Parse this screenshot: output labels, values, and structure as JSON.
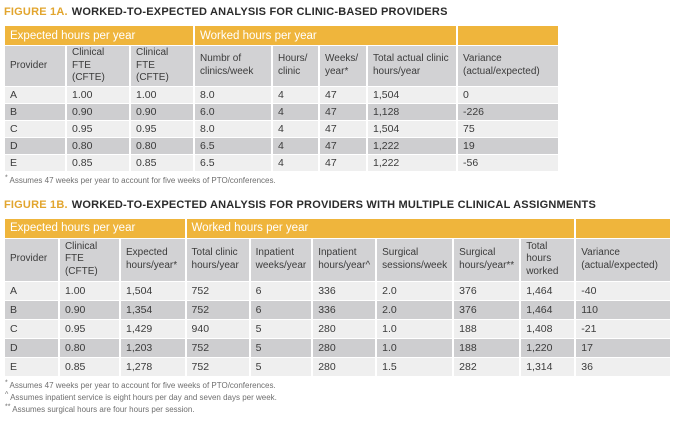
{
  "colors": {
    "gold": "#EFB53C",
    "figure_label_gold": "#E2A52E",
    "band_text": "#FFFFFF",
    "header_gray": "#D2D2D4",
    "row_light": "#EFEFEF",
    "row_dark": "#CECED0",
    "text_dark": "#3B3B3B",
    "footnote_gray": "#6F6F6F"
  },
  "figures": [
    {
      "label": "FIGURE 1A.",
      "title": "WORKED-TO-EXPECTED ANALYSIS FOR CLINIC-BASED PROVIDERS",
      "table": {
        "bands": [
          {
            "label": "Expected hours per year",
            "span": 3
          },
          {
            "label": "Worked hours per year",
            "span": 4
          },
          {
            "label": "",
            "span": 1
          }
        ],
        "columns": [
          "Provider",
          "Clinical FTE (CFTE)",
          "Clinical FTE (CFTE)",
          "Numbr of clinics/week",
          "Hours/ clinic",
          "Weeks/ year*",
          "Total actual clinic hours/year",
          "Variance (actual/expected)"
        ],
        "rows": [
          [
            "A",
            "1.00",
            "1.00",
            "8.0",
            "4",
            "47",
            "1,504",
            "0"
          ],
          [
            "B",
            "0.90",
            "0.90",
            "6.0",
            "4",
            "47",
            "1,128",
            "-226"
          ],
          [
            "C",
            "0.95",
            "0.95",
            "8.0",
            "4",
            "47",
            "1,504",
            "75"
          ],
          [
            "D",
            "0.80",
            "0.80",
            "6.5",
            "4",
            "47",
            "1,222",
            "19"
          ],
          [
            "E",
            "0.85",
            "0.85",
            "6.5",
            "4",
            "47",
            "1,222",
            "-56"
          ]
        ]
      },
      "footnotes": [
        {
          "marker": "*",
          "text": "Assumes 47 weeks per year to account for five weeks of PTO/conferences."
        }
      ]
    },
    {
      "label": "FIGURE 1B.",
      "title": "WORKED-TO-EXPECTED ANALYSIS FOR PROVIDERS WITH MULTIPLE CLINICAL ASSIGNMENTS",
      "table": {
        "bands": [
          {
            "label": "Expected hours per year",
            "span": 3
          },
          {
            "label": "Worked hours per year",
            "span": 6
          },
          {
            "label": "",
            "span": 1
          }
        ],
        "columns": [
          "Provider",
          "Clinical FTE (CFTE)",
          "Expected hours/year*",
          "Total clinic hours/year",
          "Inpatient weeks/year",
          "Inpatient hours/year^",
          "Surgical sessions/week",
          "Surgical hours/year**",
          "Total hours worked",
          "Variance (actual/expected)"
        ],
        "rows": [
          [
            "A",
            "1.00",
            "1,504",
            "752",
            "6",
            "336",
            "2.0",
            "376",
            "1,464",
            "-40"
          ],
          [
            "B",
            "0.90",
            "1,354",
            "752",
            "6",
            "336",
            "2.0",
            "376",
            "1,464",
            "110"
          ],
          [
            "C",
            "0.95",
            "1,429",
            "940",
            "5",
            "280",
            "1.0",
            "188",
            "1,408",
            "-21"
          ],
          [
            "D",
            "0.80",
            "1,203",
            "752",
            "5",
            "280",
            "1.0",
            "188",
            "1,220",
            "17"
          ],
          [
            "E",
            "0.85",
            "1,278",
            "752",
            "5",
            "280",
            "1.5",
            "282",
            "1,314",
            "36"
          ]
        ]
      },
      "footnotes": [
        {
          "marker": "*",
          "text": "Assumes 47 weeks per year to account for five weeks of PTO/conferences."
        },
        {
          "marker": "^",
          "text": "Assumes inpatient service is eight hours per day and seven days per week."
        },
        {
          "marker": "**",
          "text": "Assumes surgical hours are four hours per session."
        }
      ]
    }
  ]
}
